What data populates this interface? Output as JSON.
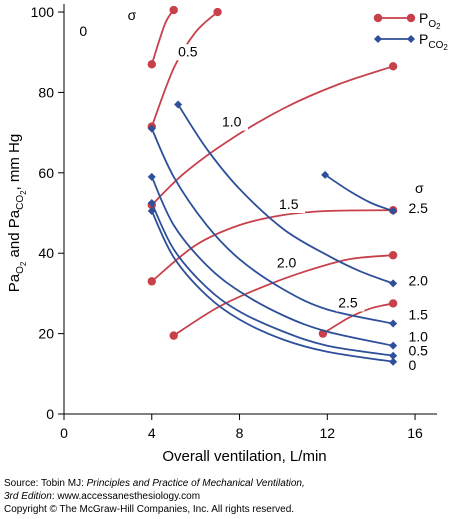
{
  "chart_data": {
    "type": "line",
    "xlabel": "Overall ventilation, L/min",
    "ylabel_parts": [
      "Pa",
      "O",
      "2",
      " and Pa",
      "CO",
      "2",
      ", mm Hg"
    ],
    "xlim": [
      0,
      17
    ],
    "ylim": [
      0,
      102
    ],
    "xticks": [
      0,
      4,
      8,
      12,
      16
    ],
    "yticks": [
      0,
      20,
      40,
      60,
      80,
      100
    ],
    "sigma_symbol": "σ",
    "legend": {
      "po2": {
        "main": "P",
        "sub": "O",
        "subsub": "2"
      },
      "pco2": {
        "main": "P",
        "sub": "CO",
        "subsub": "2"
      }
    },
    "series": [
      {
        "kind": "po2",
        "label": "0",
        "label_at": [
          0.7,
          94
        ],
        "x": [
          4.0,
          4.6,
          5.0
        ],
        "y": [
          87,
          97,
          100.5
        ]
      },
      {
        "kind": "po2",
        "label": "0.5",
        "label_at": [
          5.2,
          89
        ],
        "x": [
          4.0,
          5.0,
          6.0,
          7.0
        ],
        "y": [
          71.5,
          86,
          95,
          100
        ]
      },
      {
        "kind": "po2",
        "label": "1.0",
        "label_at": [
          7.2,
          71.5
        ],
        "x": [
          4.0,
          5.5,
          7.5,
          10.0,
          12.5,
          15.0
        ],
        "y": [
          52,
          60,
          68,
          76,
          82,
          86.5
        ]
      },
      {
        "kind": "po2",
        "label": "1.5",
        "label_at": [
          9.8,
          51
        ],
        "x": [
          4.0,
          6.0,
          8.0,
          10.0,
          12.0,
          15.0
        ],
        "y": [
          33,
          42,
          47,
          49.5,
          50.5,
          50.7
        ]
      },
      {
        "kind": "po2",
        "label": "2.0",
        "label_at": [
          9.7,
          36.5
        ],
        "x": [
          5.0,
          7.0,
          9.0,
          11.0,
          13.0,
          15.0
        ],
        "y": [
          19.5,
          26.5,
          31.5,
          35.5,
          38.5,
          39.5
        ]
      },
      {
        "kind": "po2",
        "label": "2.5",
        "label_at": [
          12.5,
          26.5
        ],
        "x": [
          11.8,
          13.0,
          14.0,
          15.0
        ],
        "y": [
          20,
          24,
          26.3,
          27.5
        ]
      },
      {
        "kind": "pco2",
        "label": "0",
        "label_at": [
          15.7,
          11
        ],
        "x": [
          4.0,
          5.0,
          6.5,
          8.0,
          10.0,
          12.0,
          15.0
        ],
        "y": [
          50.5,
          39,
          29.5,
          23.5,
          18.5,
          15.5,
          13
        ]
      },
      {
        "kind": "pco2",
        "label": "0.5",
        "label_at": [
          15.7,
          14.5
        ],
        "x": [
          4.0,
          5.0,
          6.5,
          8.0,
          10.0,
          12.0,
          15.0
        ],
        "y": [
          52.5,
          41,
          31.5,
          25.5,
          20.5,
          17,
          14.5
        ]
      },
      {
        "kind": "pco2",
        "label": "1.0",
        "label_at": [
          15.7,
          18
        ],
        "x": [
          4.0,
          5.0,
          6.5,
          8.0,
          10.0,
          12.0,
          15.0
        ],
        "y": [
          59,
          47,
          37,
          30.5,
          24.5,
          20.5,
          17
        ]
      },
      {
        "kind": "pco2",
        "label": "1.5",
        "label_at": [
          15.7,
          23.5
        ],
        "x": [
          4.0,
          5.0,
          6.5,
          8.0,
          10.0,
          12.0,
          15.0
        ],
        "y": [
          71,
          59,
          47,
          38.5,
          31,
          26,
          22.5
        ]
      },
      {
        "kind": "pco2",
        "label": "2.0",
        "label_at": [
          15.7,
          32
        ],
        "x": [
          5.2,
          6.5,
          8.0,
          10.0,
          12.0,
          13.5,
          15.0
        ],
        "y": [
          77,
          66,
          56,
          46,
          39.5,
          35.5,
          32.5
        ]
      },
      {
        "kind": "pco2",
        "label": "2.5",
        "label_at": [
          15.7,
          50
        ],
        "x": [
          11.9,
          13.0,
          14.0,
          15.0
        ],
        "y": [
          59.5,
          55.5,
          52.5,
          50.5
        ]
      }
    ],
    "sigma_labels": [
      {
        "at": [
          2.9,
          98
        ]
      },
      {
        "at": [
          16.0,
          55
        ]
      }
    ]
  },
  "colors": {
    "po2": "#c8404a",
    "pco2": "#2e4f99",
    "axis": "#000000"
  },
  "source": {
    "line1_prefix": "Source: Tobin MJ: ",
    "line1_title": "Principles and Practice of Mechanical Ventilation,",
    "line2_edition": "3rd Edition",
    "line2_rest": ": www.accessanesthesiology.com",
    "line3": "Copyright © The McGraw-Hill Companies, Inc. All rights reserved."
  }
}
